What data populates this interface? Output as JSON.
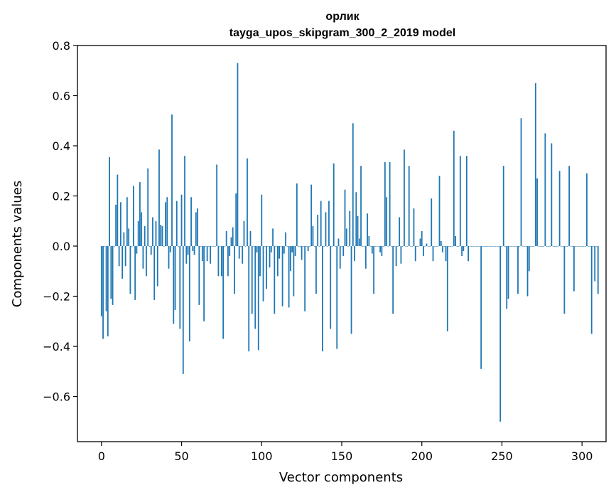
{
  "chart_data": {
    "type": "bar",
    "title_line1": "орлик",
    "title_line2": "tayga_upos_skipgram_300_2_2019 model",
    "xlabel": "Vector components",
    "ylabel": "Components values",
    "xlim": [
      -15,
      315
    ],
    "ylim": [
      -0.78,
      0.8
    ],
    "xticks": [
      0,
      50,
      100,
      150,
      200,
      250,
      300
    ],
    "xtick_labels": [
      "0",
      "50",
      "100",
      "150",
      "200",
      "250",
      "300"
    ],
    "yticks": [
      -0.6,
      -0.4,
      -0.2,
      0.0,
      0.2,
      0.4,
      0.6,
      0.8
    ],
    "ytick_labels": [
      "−0.6",
      "−0.4",
      "−0.2",
      "0.0",
      "0.2",
      "0.4",
      "0.6",
      "0.8"
    ],
    "bar_color": "#1f77b4",
    "values": [
      -0.28,
      -0.37,
      0.0,
      -0.26,
      -0.36,
      0.355,
      -0.21,
      -0.235,
      0.0,
      0.165,
      0.285,
      -0.08,
      0.175,
      -0.13,
      0.055,
      -0.08,
      0.195,
      0.07,
      -0.19,
      0.0,
      0.24,
      -0.215,
      -0.03,
      0.1,
      0.255,
      0.135,
      -0.09,
      0.08,
      -0.12,
      0.31,
      0.0,
      -0.035,
      0.115,
      -0.215,
      0.1,
      -0.16,
      0.385,
      0.085,
      0.08,
      0.0,
      0.175,
      0.195,
      -0.09,
      -0.025,
      0.525,
      -0.31,
      -0.255,
      0.18,
      0.0,
      -0.33,
      0.205,
      -0.51,
      0.36,
      -0.07,
      -0.035,
      -0.38,
      0.195,
      -0.02,
      -0.035,
      0.135,
      0.15,
      -0.235,
      0.0,
      -0.06,
      -0.3,
      0.0,
      -0.06,
      0.0,
      -0.07,
      0.0,
      0.0,
      0.0,
      0.325,
      -0.12,
      0.0,
      -0.12,
      -0.37,
      0.0,
      0.06,
      -0.12,
      -0.04,
      0.035,
      0.075,
      -0.19,
      0.21,
      0.73,
      -0.05,
      0.0,
      -0.07,
      0.1,
      0.0,
      0.35,
      -0.42,
      0.06,
      -0.27,
      0.0,
      -0.33,
      -0.025,
      -0.415,
      -0.12,
      0.205,
      -0.22,
      0.0,
      -0.17,
      0.0,
      -0.085,
      -0.025,
      0.07,
      -0.27,
      0.0,
      -0.12,
      -0.05,
      0.0,
      -0.24,
      -0.03,
      0.055,
      0.0,
      -0.245,
      -0.1,
      -0.025,
      -0.2,
      -0.04,
      0.25,
      0.0,
      0.0,
      -0.055,
      0.0,
      -0.26,
      0.0,
      -0.02,
      0.0,
      0.245,
      0.08,
      0.0,
      -0.19,
      0.125,
      0.0,
      0.18,
      -0.42,
      0.0,
      0.135,
      0.0,
      0.18,
      -0.33,
      0.0,
      0.33,
      0.0,
      -0.41,
      0.03,
      -0.09,
      0.0,
      -0.04,
      0.225,
      0.07,
      0.0,
      0.14,
      -0.35,
      0.49,
      -0.06,
      0.215,
      0.12,
      0.03,
      0.32,
      0.0,
      0.0,
      -0.09,
      0.13,
      0.04,
      0.0,
      -0.03,
      -0.19,
      0.0,
      0.0,
      0.0,
      -0.025,
      -0.04,
      0.0,
      0.335,
      0.195,
      0.0,
      0.335,
      0.0,
      -0.27,
      0.0,
      -0.08,
      0.0,
      0.115,
      -0.07,
      0.0,
      0.385,
      0.0,
      0.0,
      0.32,
      0.0,
      0.0,
      0.15,
      -0.06,
      0.0,
      0.0,
      0.03,
      0.06,
      -0.04,
      0.0,
      0.01,
      0.0,
      0.0,
      0.19,
      -0.06,
      0.0,
      0.0,
      0.0,
      0.28,
      0.02,
      -0.025,
      0.0,
      -0.06,
      -0.34,
      0.0,
      0.0,
      0.0,
      0.46,
      0.04,
      0.0,
      0.0,
      0.36,
      -0.04,
      -0.02,
      0.0,
      0.36,
      -0.06,
      0.0,
      0.0,
      0.0,
      0.0,
      0.0,
      0.0,
      0.0,
      -0.49,
      0.0,
      0.0,
      0.0,
      0.0,
      0.0,
      0.0,
      0.0,
      0.0,
      0.0,
      0.0,
      0.0,
      -0.7,
      0.0,
      0.32,
      0.0,
      -0.25,
      -0.21,
      0.0,
      0.0,
      0.0,
      0.0,
      0.0,
      -0.19,
      0.0,
      0.51,
      0.0,
      0.0,
      0.0,
      -0.2,
      -0.1,
      0.0,
      0.0,
      0.0,
      0.65,
      0.27,
      0.0,
      0.0,
      0.0,
      0.0,
      0.45,
      0.0,
      0.0,
      0.0,
      0.41,
      0.0,
      0.0,
      0.0,
      0.0,
      0.3,
      0.0,
      0.0,
      -0.27,
      0.0,
      0.0,
      0.32,
      0.0,
      0.0,
      -0.18,
      0.0,
      0.0,
      0.0,
      0.0,
      0.0,
      0.0,
      0.0,
      0.29,
      0.0,
      0.0,
      -0.35,
      0.0,
      -0.14,
      0.0,
      -0.19
    ]
  }
}
